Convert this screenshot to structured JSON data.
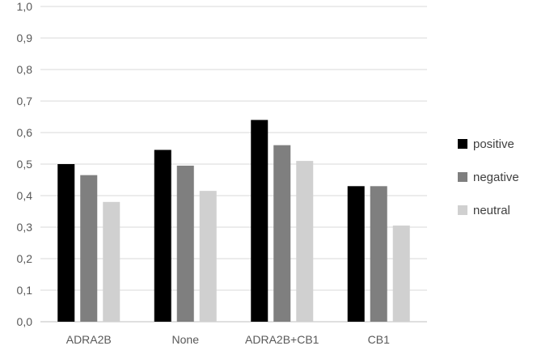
{
  "chart_data": {
    "type": "bar",
    "categories": [
      "ADRA2B",
      "None",
      "ADRA2B+CB1",
      "CB1"
    ],
    "series": [
      {
        "name": "positive",
        "color": "#000000",
        "values": [
          0.5,
          0.545,
          0.64,
          0.43
        ]
      },
      {
        "name": "negative",
        "color": "#7f7f7f",
        "values": [
          0.465,
          0.495,
          0.56,
          0.43
        ]
      },
      {
        "name": "neutral",
        "color": "#d0d0d0",
        "values": [
          0.38,
          0.415,
          0.51,
          0.305
        ]
      }
    ],
    "ylim": [
      0,
      1.0
    ],
    "yticks": [
      "0,0",
      "0,1",
      "0,2",
      "0,3",
      "0,4",
      "0,5",
      "0,6",
      "0,7",
      "0,8",
      "0,9",
      "1,0"
    ],
    "grid": true,
    "legend": "right",
    "title": "",
    "xlabel": "",
    "ylabel": ""
  }
}
